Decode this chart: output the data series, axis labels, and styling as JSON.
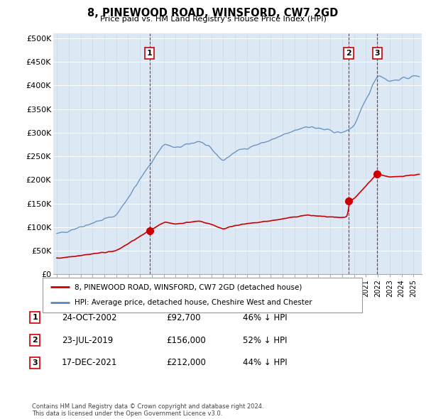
{
  "title": "8, PINEWOOD ROAD, WINSFORD, CW7 2GD",
  "subtitle": "Price paid vs. HM Land Registry's House Price Index (HPI)",
  "ylabel_ticks": [
    "£0",
    "£50K",
    "£100K",
    "£150K",
    "£200K",
    "£250K",
    "£300K",
    "£350K",
    "£400K",
    "£450K",
    "£500K"
  ],
  "ytick_values": [
    0,
    50000,
    100000,
    150000,
    200000,
    250000,
    300000,
    350000,
    400000,
    450000,
    500000
  ],
  "ylim": [
    0,
    510000
  ],
  "hpi_color": "#5588bb",
  "price_color": "#cc0000",
  "bg_color": "#dde8f5",
  "grid_color": "#b0c4de",
  "sale1": {
    "date_x": 2002.81,
    "price": 92700,
    "label": "1"
  },
  "sale2": {
    "date_x": 2019.55,
    "price": 156000,
    "label": "2"
  },
  "sale3": {
    "date_x": 2021.96,
    "price": 212000,
    "label": "3"
  },
  "legend_line1": "8, PINEWOOD ROAD, WINSFORD, CW7 2GD (detached house)",
  "legend_line2": "HPI: Average price, detached house, Cheshire West and Chester",
  "table_rows": [
    {
      "num": "1",
      "date": "24-OCT-2002",
      "price": "£92,700",
      "hpi": "46% ↓ HPI"
    },
    {
      "num": "2",
      "date": "23-JUL-2019",
      "price": "£156,000",
      "hpi": "52% ↓ HPI"
    },
    {
      "num": "3",
      "date": "17-DEC-2021",
      "price": "£212,000",
      "hpi": "44% ↓ HPI"
    }
  ],
  "footer": "Contains HM Land Registry data © Crown copyright and database right 2024.\nThis data is licensed under the Open Government Licence v3.0.",
  "xmin": 1994.7,
  "xmax": 2025.7
}
